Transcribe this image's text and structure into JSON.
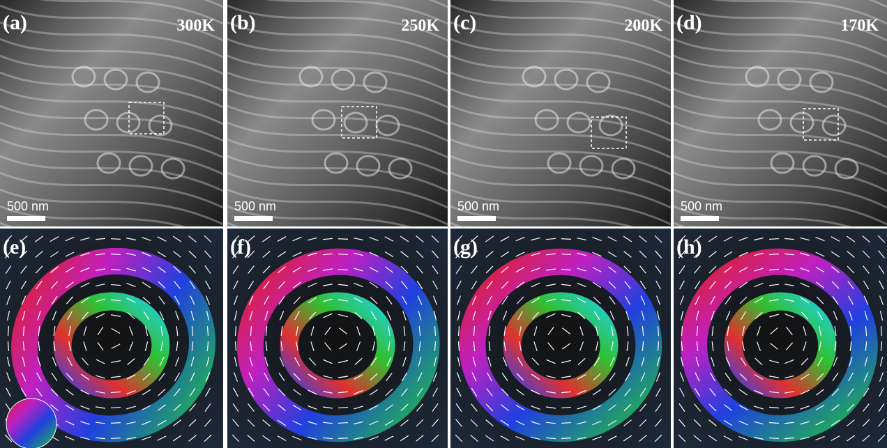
{
  "panels_top": [
    {
      "label": "(a)",
      "temperature": "300K",
      "scale": "500 nm"
    },
    {
      "label": "(b)",
      "temperature": "250K",
      "scale": "500 nm"
    },
    {
      "label": "(c)",
      "temperature": "200K",
      "scale": "500 nm"
    },
    {
      "label": "(d)",
      "temperature": "170K",
      "scale": "500 nm"
    }
  ],
  "panels_bottom": [
    {
      "label": "(e)"
    },
    {
      "label": "(f)"
    },
    {
      "label": "(g)"
    },
    {
      "label": "(h)"
    }
  ]
}
